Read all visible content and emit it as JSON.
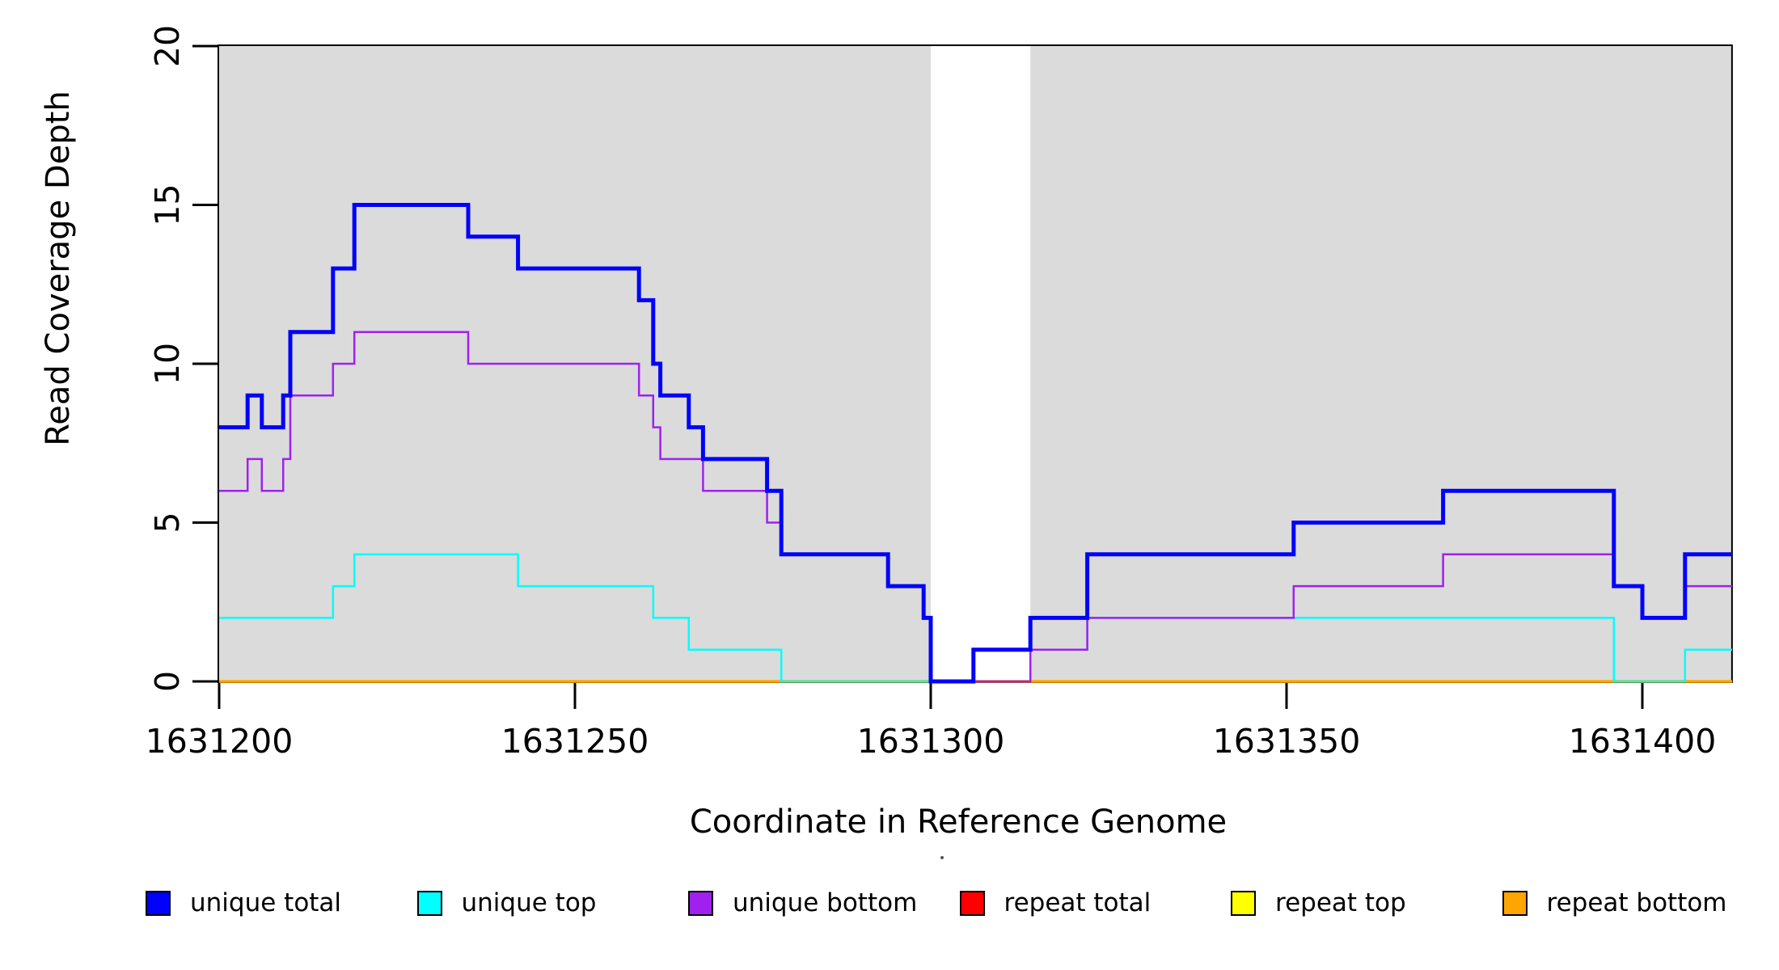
{
  "chart_data": {
    "type": "line",
    "subtype": "step",
    "title": "",
    "xlabel": "Coordinate in Reference Genome",
    "ylabel": "Read Coverage Depth",
    "xlim": [
      1631200,
      1631412.6
    ],
    "ylim": [
      0,
      20
    ],
    "grid": false,
    "legend_position": "bottom",
    "x_ticks": {
      "values": [
        1631200,
        1631250,
        1631300,
        1631350,
        1631400
      ],
      "labels": [
        "1631200",
        "1631250",
        "1631300",
        "1631350",
        "1631400"
      ]
    },
    "y_ticks": {
      "values": [
        0,
        5,
        10,
        15,
        20
      ],
      "labels": [
        "0",
        "5",
        "10",
        "15",
        "20"
      ]
    },
    "shaded_regions": [
      {
        "x0": 1631200,
        "x1": 1631300,
        "color": "#DBDBDB"
      },
      {
        "x0": 1631314,
        "x1": 1631412.6,
        "color": "#DBDBDB"
      }
    ],
    "frame_color": "#000000",
    "series": [
      {
        "name": "unique total",
        "color": "#0000FF",
        "zorder": 6,
        "line_width": 5,
        "x_end": 1631412.6,
        "steps": [
          [
            1631200,
            8
          ],
          [
            1631204,
            9
          ],
          [
            1631206,
            8
          ],
          [
            1631209,
            9
          ],
          [
            1631210,
            11
          ],
          [
            1631216,
            13
          ],
          [
            1631219,
            15
          ],
          [
            1631235,
            14
          ],
          [
            1631242,
            13
          ],
          [
            1631259,
            12
          ],
          [
            1631261,
            10
          ],
          [
            1631262,
            9
          ],
          [
            1631266,
            8
          ],
          [
            1631268,
            7
          ],
          [
            1631277,
            6
          ],
          [
            1631279,
            4
          ],
          [
            1631294,
            3
          ],
          [
            1631299,
            2
          ],
          [
            1631300,
            0
          ],
          [
            1631306,
            1
          ],
          [
            1631314,
            2
          ],
          [
            1631322,
            4
          ],
          [
            1631351,
            5
          ],
          [
            1631372,
            6
          ],
          [
            1631396,
            3
          ],
          [
            1631400,
            2
          ],
          [
            1631406,
            4
          ]
        ]
      },
      {
        "name": "unique top",
        "color": "#00FFFF",
        "zorder": 4,
        "line_width": 2.5,
        "x_end": 1631412.6,
        "steps": [
          [
            1631200,
            2
          ],
          [
            1631216,
            3
          ],
          [
            1631219,
            4
          ],
          [
            1631242,
            3
          ],
          [
            1631261,
            2
          ],
          [
            1631266,
            1
          ],
          [
            1631279,
            0
          ],
          [
            1631306,
            1
          ],
          [
            1631322,
            2
          ],
          [
            1631396,
            0
          ],
          [
            1631406,
            1
          ]
        ]
      },
      {
        "name": "unique bottom",
        "color": "#A020F0",
        "zorder": 5,
        "line_width": 2.5,
        "x_end": 1631412.6,
        "steps": [
          [
            1631200,
            6
          ],
          [
            1631204,
            7
          ],
          [
            1631206,
            6
          ],
          [
            1631209,
            7
          ],
          [
            1631210,
            9
          ],
          [
            1631216,
            10
          ],
          [
            1631219,
            11
          ],
          [
            1631235,
            10
          ],
          [
            1631259,
            9
          ],
          [
            1631261,
            8
          ],
          [
            1631262,
            7
          ],
          [
            1631268,
            6
          ],
          [
            1631277,
            5
          ],
          [
            1631279,
            4
          ],
          [
            1631294,
            3
          ],
          [
            1631299,
            2
          ],
          [
            1631300,
            0
          ],
          [
            1631314,
            1
          ],
          [
            1631322,
            2
          ],
          [
            1631351,
            3
          ],
          [
            1631372,
            4
          ],
          [
            1631396,
            3
          ],
          [
            1631400,
            2
          ],
          [
            1631406,
            3
          ]
        ]
      },
      {
        "name": "repeat total",
        "color": "#FF0000",
        "zorder": 1,
        "line_width": 3,
        "x_end": 1631412.6,
        "steps": [
          [
            1631200,
            0
          ]
        ]
      },
      {
        "name": "repeat top",
        "color": "#FFFF00",
        "zorder": 2,
        "line_width": 3,
        "x_end": 1631412.6,
        "steps": [
          [
            1631200,
            0
          ]
        ]
      },
      {
        "name": "repeat bottom",
        "color": "#FFA500",
        "zorder": 3,
        "line_width": 3.5,
        "x_end": 1631412.6,
        "steps": [
          [
            1631200,
            0
          ]
        ]
      }
    ]
  },
  "legend": {
    "items": [
      {
        "label": "unique total",
        "color": "#0000FF"
      },
      {
        "label": "unique top",
        "color": "#00FFFF"
      },
      {
        "label": "unique bottom",
        "color": "#A020F0"
      },
      {
        "label": "repeat total",
        "color": "#FF0000"
      },
      {
        "label": "repeat top",
        "color": "#FFFF00"
      },
      {
        "label": "repeat bottom",
        "color": "#FFA500"
      }
    ]
  }
}
